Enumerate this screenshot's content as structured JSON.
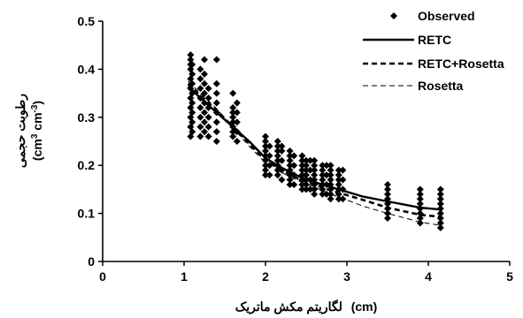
{
  "chart_data": {
    "type": "scatter",
    "xlabel_text": "لگاریتم مکش ماتریک",
    "xlabel_unit": "(cm)",
    "ylabel_text": "رطوبت حجمی",
    "ylabel_unit": "(cm3 cm-3)",
    "xlim": [
      0,
      5
    ],
    "ylim": [
      0,
      0.5
    ],
    "x_ticks": [
      "0",
      "1",
      "2",
      "3",
      "4",
      "5"
    ],
    "y_ticks": [
      "0",
      "0.1",
      "0.2",
      "0.3",
      "0.4",
      "0.5"
    ],
    "grid": false,
    "legend_position": "top-right",
    "observed": {
      "name": "Observed",
      "color": "#000000",
      "marker": "diamond",
      "groups": [
        {
          "x": 1.08,
          "y": [
            0.26,
            0.28,
            0.3,
            0.32,
            0.34,
            0.36,
            0.38,
            0.4,
            0.41,
            0.42,
            0.43
          ]
        },
        {
          "x": 1.1,
          "y": [
            0.27,
            0.29,
            0.31,
            0.33,
            0.35,
            0.37,
            0.39,
            0.41
          ]
        },
        {
          "x": 1.2,
          "y": [
            0.26,
            0.28,
            0.3,
            0.32,
            0.34,
            0.36,
            0.38,
            0.4
          ]
        },
        {
          "x": 1.25,
          "y": [
            0.27,
            0.29,
            0.31,
            0.33,
            0.35,
            0.37,
            0.39,
            0.42
          ]
        },
        {
          "x": 1.3,
          "y": [
            0.26,
            0.28,
            0.3,
            0.32,
            0.34,
            0.36
          ]
        },
        {
          "x": 1.4,
          "y": [
            0.25,
            0.27,
            0.29,
            0.31,
            0.33,
            0.35,
            0.37,
            0.42
          ]
        },
        {
          "x": 1.6,
          "y": [
            0.26,
            0.27,
            0.28,
            0.29,
            0.3,
            0.31,
            0.32,
            0.35
          ]
        },
        {
          "x": 1.65,
          "y": [
            0.25,
            0.27,
            0.29,
            0.31,
            0.33
          ]
        },
        {
          "x": 2.0,
          "y": [
            0.18,
            0.19,
            0.2,
            0.21,
            0.22,
            0.23,
            0.24,
            0.25,
            0.26
          ]
        },
        {
          "x": 2.05,
          "y": [
            0.18,
            0.2,
            0.22,
            0.24
          ]
        },
        {
          "x": 2.15,
          "y": [
            0.18,
            0.19,
            0.2,
            0.21,
            0.22,
            0.23,
            0.24,
            0.25
          ]
        },
        {
          "x": 2.2,
          "y": [
            0.17,
            0.19,
            0.21,
            0.23,
            0.24
          ]
        },
        {
          "x": 2.3,
          "y": [
            0.16,
            0.17,
            0.18,
            0.19,
            0.2,
            0.21,
            0.22,
            0.23
          ]
        },
        {
          "x": 2.35,
          "y": [
            0.16,
            0.18,
            0.2,
            0.22
          ]
        },
        {
          "x": 2.45,
          "y": [
            0.15,
            0.16,
            0.17,
            0.18,
            0.19,
            0.2,
            0.21,
            0.22
          ]
        },
        {
          "x": 2.5,
          "y": [
            0.15,
            0.16,
            0.17,
            0.18,
            0.19,
            0.2,
            0.21
          ]
        },
        {
          "x": 2.55,
          "y": [
            0.15,
            0.17,
            0.19,
            0.21
          ]
        },
        {
          "x": 2.6,
          "y": [
            0.14,
            0.15,
            0.16,
            0.17,
            0.18,
            0.19,
            0.2,
            0.21
          ]
        },
        {
          "x": 2.7,
          "y": [
            0.14,
            0.15,
            0.16,
            0.17,
            0.18,
            0.19,
            0.2
          ]
        },
        {
          "x": 2.75,
          "y": [
            0.14,
            0.16,
            0.18,
            0.2
          ]
        },
        {
          "x": 2.8,
          "y": [
            0.13,
            0.14,
            0.15,
            0.16,
            0.17,
            0.18,
            0.19,
            0.2
          ]
        },
        {
          "x": 2.9,
          "y": [
            0.13,
            0.14,
            0.15,
            0.16,
            0.17,
            0.18,
            0.19
          ]
        },
        {
          "x": 2.95,
          "y": [
            0.13,
            0.15,
            0.17,
            0.19
          ]
        },
        {
          "x": 3.5,
          "y": [
            0.09,
            0.1,
            0.11,
            0.12,
            0.13,
            0.14,
            0.15,
            0.16
          ]
        },
        {
          "x": 3.9,
          "y": [
            0.08,
            0.09,
            0.1,
            0.11,
            0.12,
            0.13,
            0.14,
            0.15
          ]
        },
        {
          "x": 4.15,
          "y": [
            0.07,
            0.08,
            0.09,
            0.1,
            0.11,
            0.12,
            0.13,
            0.14,
            0.15
          ]
        }
      ]
    },
    "series": [
      {
        "name": "RETC",
        "color": "#000000",
        "style": "solid",
        "x": [
          1.05,
          1.2,
          1.4,
          1.6,
          1.8,
          2.0,
          2.2,
          2.4,
          2.6,
          2.8,
          3.0,
          3.2,
          3.5,
          3.9,
          4.15
        ],
        "y": [
          0.365,
          0.34,
          0.31,
          0.28,
          0.25,
          0.215,
          0.195,
          0.178,
          0.165,
          0.155,
          0.145,
          0.135,
          0.125,
          0.112,
          0.108
        ]
      },
      {
        "name": "RETC+Rosetta",
        "color": "#000000",
        "style": "dashed",
        "x": [
          1.05,
          1.2,
          1.4,
          1.6,
          1.8,
          2.0,
          2.2,
          2.4,
          2.6,
          2.8,
          3.0,
          3.2,
          3.5,
          3.9,
          4.15
        ],
        "y": [
          0.37,
          0.345,
          0.315,
          0.28,
          0.245,
          0.21,
          0.19,
          0.172,
          0.16,
          0.148,
          0.138,
          0.128,
          0.112,
          0.097,
          0.093
        ]
      },
      {
        "name": "Rosetta",
        "color": "#000000",
        "style": "thin-dashed",
        "x": [
          1.05,
          1.2,
          1.4,
          1.6,
          1.8,
          2.0,
          2.2,
          2.4,
          2.6,
          2.8,
          3.0,
          3.2,
          3.5,
          3.9,
          4.15
        ],
        "y": [
          0.375,
          0.35,
          0.318,
          0.278,
          0.24,
          0.205,
          0.185,
          0.168,
          0.155,
          0.14,
          0.128,
          0.115,
          0.1,
          0.082,
          0.075
        ]
      }
    ]
  }
}
